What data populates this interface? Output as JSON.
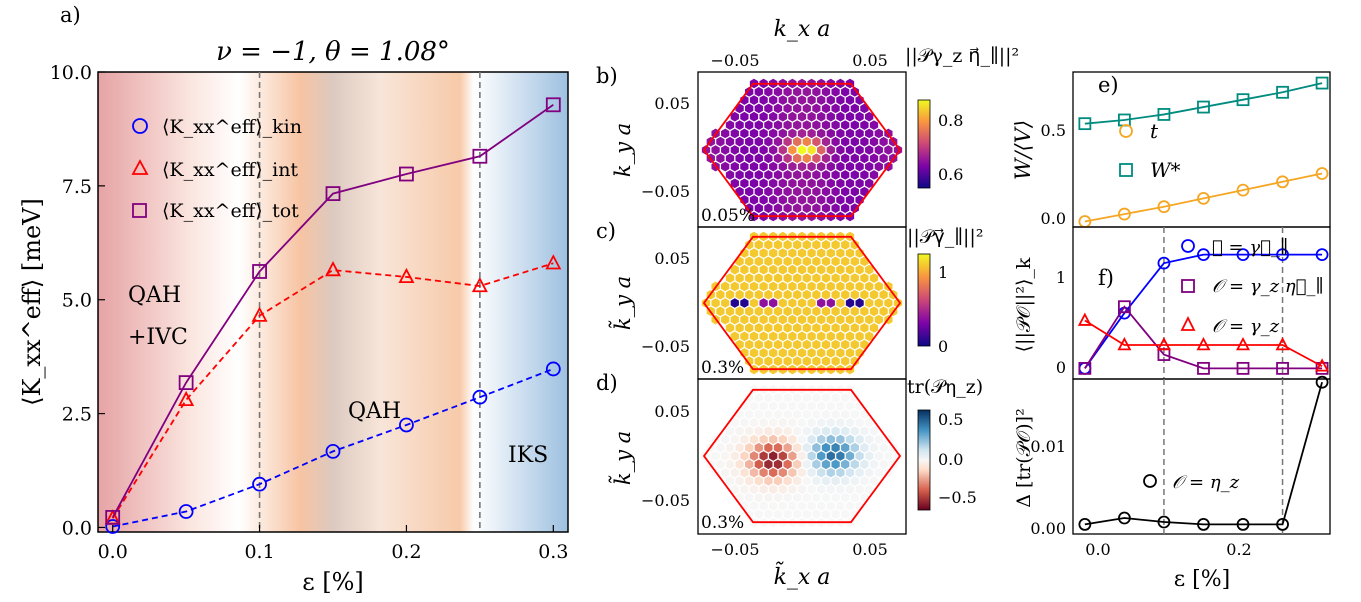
{
  "colors": {
    "kin": "#0000ff",
    "int": "#ff0000",
    "tot": "#800080",
    "t": "#f5a623",
    "wstar": "#008b7f",
    "eta": "#000000",
    "bz": "#ff0000",
    "vline": "#777777"
  },
  "panel_a": {
    "letter": "a)",
    "title": "ν = −1, θ = 1.08°",
    "ylabel": "⟨K_xx^eff⟩ [meV]",
    "xlabel": "ε [%]",
    "regions": [
      "QAH",
      "+IVC",
      "QAH",
      "IKS"
    ]
  },
  "panel_b": {
    "letter": "b)",
    "top_label": "k_x a",
    "ylabel": "k_y a",
    "cbar_label": "||𝒫γ_z η⃗_∥||²",
    "strain": "0.05%"
  },
  "panel_c": {
    "letter": "c)",
    "ylabel": "k̃_y a",
    "cbar_label": "||𝒫γ⃗_∥||²",
    "strain": "0.3%"
  },
  "panel_d": {
    "letter": "d)",
    "ylabel": "k̃_y a",
    "xlabel": "k̃_x a",
    "cbar_label": "tr(𝒫η_z)",
    "strain": "0.3%"
  },
  "panel_e": {
    "letter": "e)",
    "ylabel": "W/⟨V⟩"
  },
  "panel_f": {
    "letter": "f)",
    "ylabel": "⟨||𝒫𝒪||²⟩_k"
  },
  "panel_g": {
    "ylabel": "Δ [tr(𝒫𝒪)]²",
    "xlabel": "ε [%]"
  },
  "chart_data": [
    {
      "type": "line",
      "panel": "a",
      "title": "ν = −1, θ = 1.08°",
      "xlabel": "ε [%]",
      "ylabel": "⟨K_xx^eff⟩ [meV]",
      "xlim": [
        -0.01,
        0.31
      ],
      "ylim": [
        -0.1,
        10.0
      ],
      "xticks": [
        "0.0",
        "0.1",
        "0.2",
        "0.3"
      ],
      "yticks": [
        "0.0",
        "2.5",
        "5.0",
        "7.5",
        "10.0"
      ],
      "x": [
        0.0,
        0.05,
        0.1,
        0.15,
        0.2,
        0.25,
        0.3
      ],
      "series": [
        {
          "name": "⟨K_xx^eff⟩_kin",
          "marker": "circle",
          "style": "dashed",
          "values": [
            0.02,
            0.35,
            0.95,
            1.67,
            2.25,
            2.86,
            3.48
          ]
        },
        {
          "name": "⟨K_xx^eff⟩_int",
          "marker": "triangle",
          "style": "dashed",
          "values": [
            0.2,
            2.8,
            4.65,
            5.65,
            5.5,
            5.3,
            5.8
          ]
        },
        {
          "name": "⟨K_xx^eff⟩_tot",
          "marker": "square",
          "style": "solid",
          "values": [
            0.22,
            3.18,
            5.62,
            7.33,
            7.76,
            8.15,
            9.28
          ]
        }
      ],
      "vlines": [
        0.1,
        0.25
      ],
      "annotations": [
        "QAH",
        "+IVC",
        "QAH",
        "IKS"
      ]
    },
    {
      "type": "heatmap",
      "panel": "b",
      "cbar_label": "||𝒫γ_z η⃗_∥||²",
      "cbar_range": [
        0.53,
        0.88
      ],
      "cbar_ticks": [
        "0.6",
        "0.8"
      ],
      "xticks": [
        "−0.05",
        "0.05"
      ],
      "yticks": [
        "0.05",
        "−0.05"
      ],
      "annotation": "0.05%"
    },
    {
      "type": "heatmap",
      "panel": "c",
      "cbar_label": "||𝒫γ⃗_∥||²",
      "cbar_range": [
        0,
        1.25
      ],
      "cbar_ticks": [
        "0",
        "1"
      ],
      "yticks": [
        "0.05",
        "−0.05"
      ],
      "annotation": "0.3%"
    },
    {
      "type": "heatmap",
      "panel": "d",
      "cbar_label": "tr(𝒫η_z)",
      "cbar_range": [
        -0.7,
        0.7
      ],
      "cbar_ticks": [
        "0.5",
        "0.0",
        "−0.5"
      ],
      "xticks": [
        "−0.05",
        "0.05"
      ],
      "yticks": [
        "0.05",
        "−0.05"
      ],
      "annotation": "0.3%"
    },
    {
      "type": "line",
      "panel": "e",
      "ylabel": "W/⟨V⟩",
      "ylim": [
        -0.02,
        0.82
      ],
      "yticks": [
        "0.0",
        "0.5"
      ],
      "x": [
        0.0,
        0.05,
        0.1,
        0.15,
        0.2,
        0.25,
        0.3
      ],
      "series": [
        {
          "name": "t",
          "marker": "circle",
          "values": [
            0.01,
            0.05,
            0.09,
            0.135,
            0.18,
            0.225,
            0.27
          ]
        },
        {
          "name": "W*",
          "marker": "square",
          "values": [
            0.54,
            0.56,
            0.59,
            0.63,
            0.67,
            0.71,
            0.76
          ]
        }
      ]
    },
    {
      "type": "line",
      "panel": "f",
      "ylabel": "⟨||𝒫𝒪||²⟩_k",
      "ylim": [
        -0.1,
        1.33
      ],
      "yticks": [
        "0",
        "1"
      ],
      "x": [
        0.0,
        0.05,
        0.1,
        0.15,
        0.2,
        0.25,
        0.3
      ],
      "series": [
        {
          "name": "𝒪 = γ⃗_∥",
          "marker": "circle",
          "values": [
            0.0,
            0.52,
            0.99,
            1.07,
            1.07,
            1.07,
            1.07
          ]
        },
        {
          "name": "𝒪 = γ_z η⃗_∥",
          "marker": "square",
          "values": [
            0.0,
            0.58,
            0.13,
            0.0,
            0.0,
            0.0,
            0.0
          ]
        },
        {
          "name": "𝒪 = γ_z",
          "marker": "triangle",
          "values": [
            0.45,
            0.22,
            0.22,
            0.22,
            0.22,
            0.22,
            0.02
          ]
        }
      ]
    },
    {
      "type": "line",
      "panel": "g",
      "xlabel": "ε [%]",
      "ylabel": "Δ [tr(𝒫𝒪)]²",
      "xlim": [
        -0.015,
        0.31
      ],
      "ylim": [
        -0.0012,
        0.0182
      ],
      "xticks": [
        "0.0",
        "0.2"
      ],
      "yticks": [
        "0.00",
        "0.01"
      ],
      "x": [
        0.0,
        0.05,
        0.1,
        0.15,
        0.2,
        0.25,
        0.3
      ],
      "series": [
        {
          "name": "𝒪 = η_z",
          "marker": "circle",
          "values": [
            0.0,
            0.0008,
            0.0003,
            0.0,
            0.0,
            0.0,
            0.0178
          ]
        }
      ]
    }
  ]
}
